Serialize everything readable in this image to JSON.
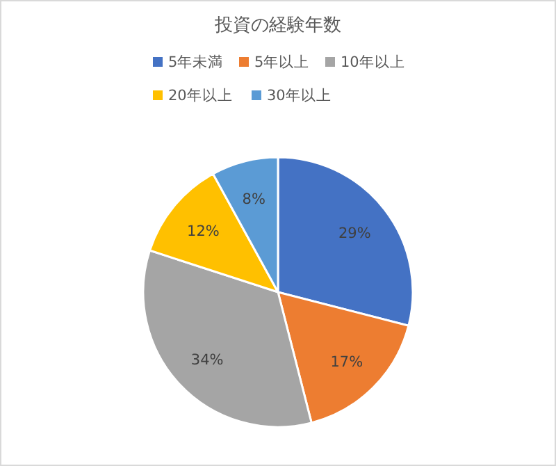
{
  "chart_data": {
    "type": "pie",
    "title": "投資の経験年数",
    "categories": [
      "5年未満",
      "5年以上",
      "10年以上",
      "20年以上",
      "30年以上"
    ],
    "values": [
      29,
      17,
      34,
      12,
      8
    ],
    "colors": [
      "#4472c4",
      "#ed7d31",
      "#a5a5a5",
      "#ffc000",
      "#5b9bd5"
    ],
    "value_labels": [
      "29%",
      "17%",
      "34%",
      "12%",
      "8%"
    ],
    "legend": "top"
  }
}
